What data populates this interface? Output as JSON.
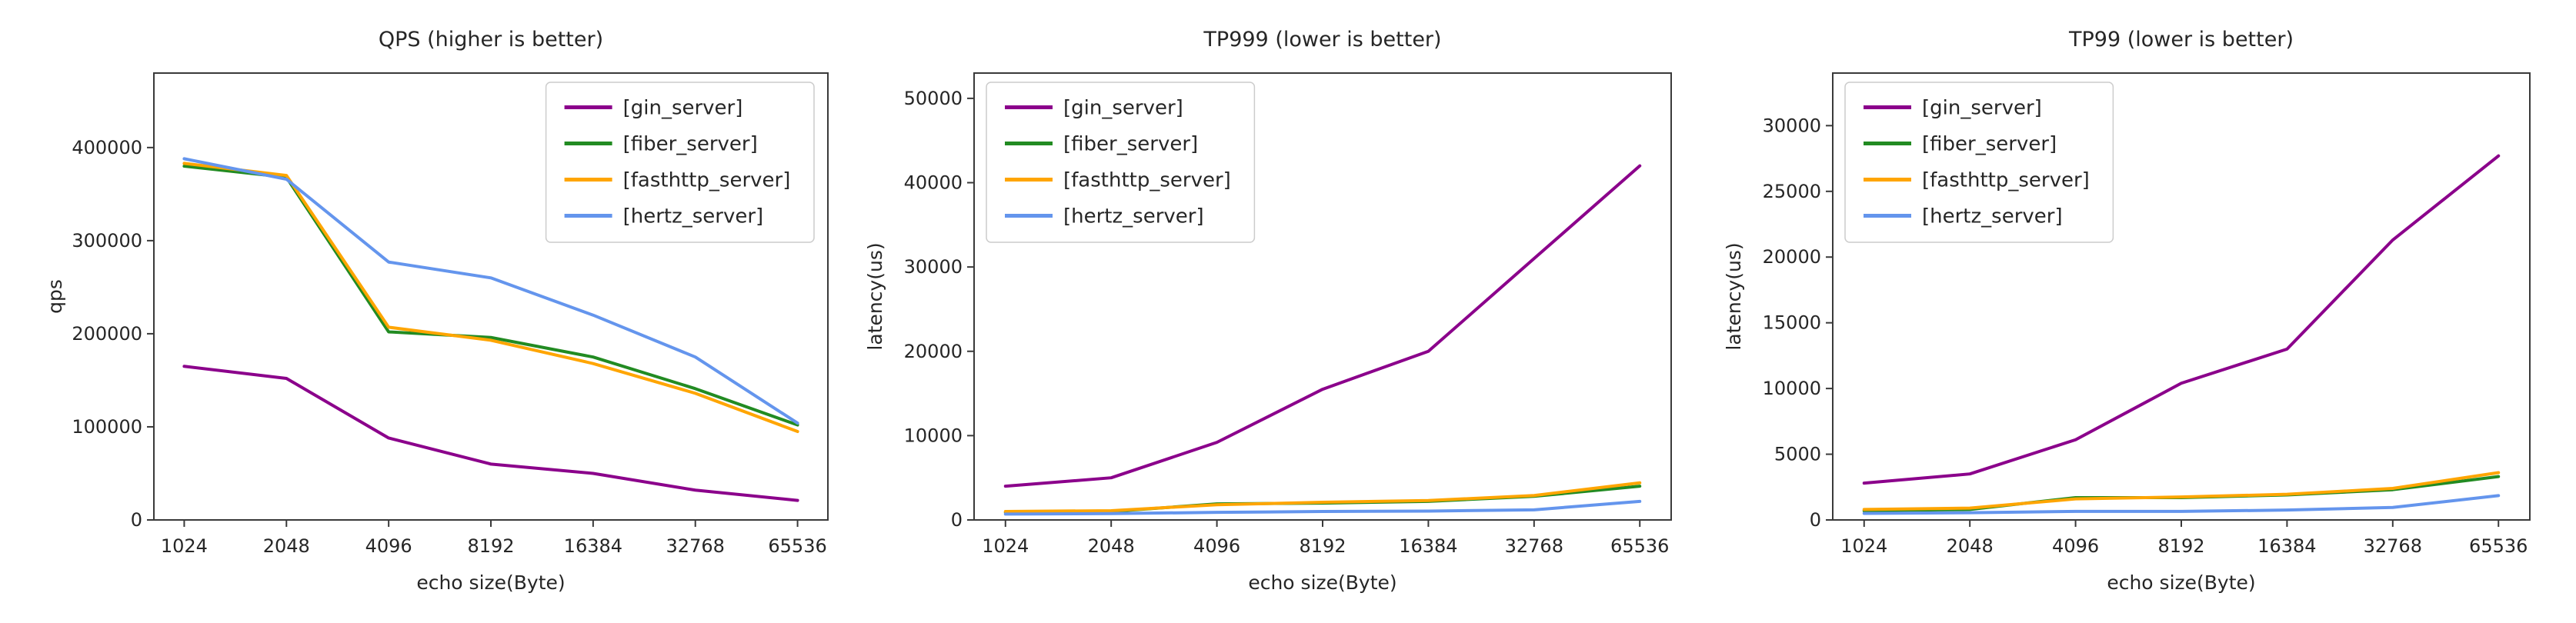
{
  "figure": {
    "background": "#ffffff",
    "text_color": "#262626",
    "spine_color": "#3a3a3a"
  },
  "chart_data": [
    {
      "type": "line",
      "title": "QPS (higher is better)",
      "xlabel": "echo size(Byte)",
      "ylabel": "qps",
      "x_scale": "log2",
      "grid": false,
      "categories": [
        1024,
        2048,
        4096,
        8192,
        16384,
        32768,
        65536
      ],
      "yticks": [
        0,
        100000,
        200000,
        300000,
        400000
      ],
      "ylim": [
        0,
        480000
      ],
      "legend_position": "upper-right",
      "margins": {
        "left": 200,
        "right": 1076
      },
      "series": [
        {
          "name": "[gin_server]",
          "color": "#8B008B",
          "values": [
            165000,
            152000,
            88000,
            60000,
            50000,
            32000,
            21000
          ]
        },
        {
          "name": "[fiber_server]",
          "color": "#228B22",
          "values": [
            380000,
            368000,
            202000,
            196000,
            175000,
            141000,
            102000
          ]
        },
        {
          "name": "[fasthttp_server]",
          "color": "#FFA500",
          "values": [
            383000,
            370000,
            207000,
            193000,
            168000,
            136000,
            95000
          ]
        },
        {
          "name": "[hertz_server]",
          "color": "#6495ED",
          "values": [
            388000,
            366000,
            277000,
            260000,
            220000,
            175000,
            104000
          ]
        }
      ]
    },
    {
      "type": "line",
      "title": "TP999 (lower is better)",
      "xlabel": "echo size(Byte)",
      "ylabel": "latency(us)",
      "x_scale": "log2",
      "grid": false,
      "categories": [
        1024,
        2048,
        4096,
        8192,
        16384,
        32768,
        65536
      ],
      "yticks": [
        0,
        10000,
        20000,
        30000,
        40000,
        50000
      ],
      "ylim": [
        0,
        53000
      ],
      "legend_position": "upper-left",
      "margins": {
        "left": 150,
        "right": 1056
      },
      "series": [
        {
          "name": "[gin_server]",
          "color": "#8B008B",
          "values": [
            4000,
            5000,
            9200,
            15500,
            20000,
            31000,
            42000
          ]
        },
        {
          "name": "[fiber_server]",
          "color": "#228B22",
          "values": [
            900,
            1000,
            1900,
            2000,
            2200,
            2800,
            4000
          ]
        },
        {
          "name": "[fasthttp_server]",
          "color": "#FFA500",
          "values": [
            1000,
            1100,
            1800,
            2100,
            2300,
            2900,
            4400
          ]
        },
        {
          "name": "[hertz_server]",
          "color": "#6495ED",
          "values": [
            700,
            750,
            900,
            1000,
            1050,
            1200,
            2200
          ]
        }
      ]
    },
    {
      "type": "line",
      "title": "TP99 (lower is better)",
      "xlabel": "echo size(Byte)",
      "ylabel": "latency(us)",
      "x_scale": "log2",
      "grid": false,
      "categories": [
        1024,
        2048,
        4096,
        8192,
        16384,
        32768,
        65536
      ],
      "yticks": [
        0,
        5000,
        10000,
        15000,
        20000,
        25000,
        30000
      ],
      "ylim": [
        0,
        34000
      ],
      "legend_position": "upper-left",
      "margins": {
        "left": 150,
        "right": 1056
      },
      "series": [
        {
          "name": "[gin_server]",
          "color": "#8B008B",
          "values": [
            2800,
            3500,
            6100,
            10400,
            13000,
            21300,
            27700
          ]
        },
        {
          "name": "[fiber_server]",
          "color": "#228B22",
          "values": [
            700,
            800,
            1700,
            1700,
            1900,
            2300,
            3300
          ]
        },
        {
          "name": "[fasthttp_server]",
          "color": "#FFA500",
          "values": [
            800,
            900,
            1600,
            1750,
            1950,
            2400,
            3600
          ]
        },
        {
          "name": "[hertz_server]",
          "color": "#6495ED",
          "values": [
            500,
            550,
            650,
            650,
            750,
            950,
            1850
          ]
        }
      ]
    }
  ]
}
